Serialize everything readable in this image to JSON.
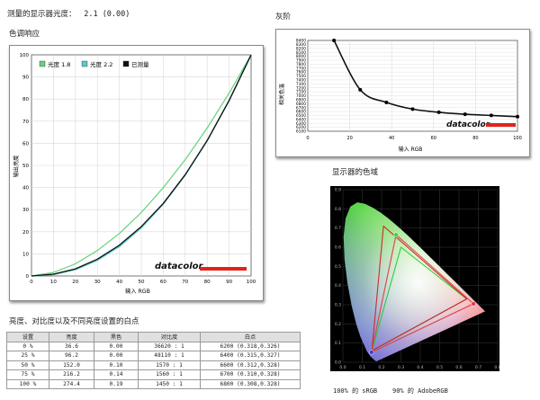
{
  "header": {
    "brightness_label": "测量的显示器光度：",
    "brightness_value": "2.1 (0.00)",
    "tone_title": "色调响应",
    "gray_title": "灰阶",
    "gamut_title": "显示器的色域",
    "table_title": "亮度、对比度以及不同亮度设置的白点"
  },
  "tone_chart": {
    "legend": [
      "光度 1.8",
      "光度 2.2",
      "已测量"
    ],
    "xlabel": "输入 RGB",
    "ylabel": "输出亮度",
    "x_ticks": [
      "0",
      "10",
      "20",
      "30",
      "40",
      "50",
      "60",
      "70",
      "80",
      "90",
      "100"
    ],
    "y_ticks": [
      "0",
      "10",
      "20",
      "30",
      "40",
      "50",
      "60",
      "70",
      "80",
      "90",
      "100"
    ],
    "logo": "datacolor"
  },
  "gray_chart": {
    "xlabel": "输入 RGB",
    "ylabel": "相关色温",
    "x_ticks": [
      "0",
      "20",
      "40",
      "60",
      "80",
      "100"
    ],
    "y_ticks": [
      "6100",
      "6200",
      "6300",
      "6400",
      "6500",
      "6600",
      "6700",
      "6800",
      "6900",
      "7000",
      "7100",
      "7200",
      "7300",
      "7400",
      "7500",
      "7600",
      "7700",
      "7800",
      "7900",
      "8000",
      "8100",
      "8200",
      "8300",
      "8400"
    ],
    "logo": "datacolor"
  },
  "gamut_chart": {
    "x_ticks": [
      "0.0",
      "0.1",
      "0.2",
      "0.3",
      "0.4",
      "0.5",
      "0.6",
      "0.7",
      "0.8"
    ],
    "y_ticks": [
      "0.0",
      "0.1",
      "0.2",
      "0.3",
      "0.4",
      "0.5",
      "0.6",
      "0.7",
      "0.8",
      "0.9"
    ],
    "caption_srgb": "100% 的 sRGB",
    "caption_adobe": "90% 的 AdobeRGB"
  },
  "table": {
    "headers": [
      "设置",
      "亮度",
      "黑色",
      "对比度",
      "白点"
    ],
    "rows": [
      [
        "0 %",
        "36.6",
        "0.00",
        "36620 : 1",
        "6200 (0.318,0.326)"
      ],
      [
        "25 %",
        "96.2",
        "0.00",
        "48110 : 1",
        "6400 (0.315,0.327)"
      ],
      [
        "50 %",
        "152.0",
        "0.10",
        "1570 : 1",
        "6600 (0.312,0.328)"
      ],
      [
        "75 %",
        "216.2",
        "0.14",
        "1560 : 1",
        "6700 (0.310,0.328)"
      ],
      [
        "100 %",
        "274.4",
        "0.19",
        "1450 : 1",
        "6800 (0.308,0.328)"
      ]
    ]
  },
  "chart_data": [
    {
      "type": "line",
      "title": "色调响应",
      "xlabel": "输入 RGB",
      "ylabel": "输出亮度",
      "xlim": [
        0,
        100
      ],
      "ylim": [
        0,
        100
      ],
      "x": [
        0,
        10,
        20,
        30,
        40,
        50,
        60,
        70,
        80,
        90,
        100
      ],
      "series": [
        {
          "name": "光度 1.8",
          "color": "#66d27a",
          "values": [
            0,
            1.6,
            5.5,
            11.5,
            19.2,
            28.7,
            39.9,
            52.6,
            66.9,
            82.7,
            100
          ]
        },
        {
          "name": "光度 2.2",
          "color": "#58c9c9",
          "values": [
            0,
            0.6,
            2.9,
            7.1,
            13.3,
            21.8,
            32.5,
            45.6,
            61.2,
            79.3,
            100
          ]
        },
        {
          "name": "已测量",
          "color": "#111111",
          "values": [
            0,
            0.8,
            3.2,
            7.6,
            13.9,
            22.3,
            32.8,
            45.8,
            61.2,
            79.4,
            100
          ]
        }
      ]
    },
    {
      "type": "line",
      "title": "灰阶",
      "xlabel": "输入 RGB",
      "ylabel": "相关色温",
      "xlim": [
        0,
        100
      ],
      "ylim": [
        6100,
        8400
      ],
      "x": [
        12.5,
        25,
        37.5,
        50,
        62.5,
        75,
        87.5,
        100
      ],
      "series": [
        {
          "name": "",
          "color": "#111111",
          "values": [
            8400,
            7150,
            6830,
            6660,
            6580,
            6530,
            6500,
            6470
          ]
        }
      ]
    },
    {
      "type": "scatter",
      "title": "显示器的色域",
      "xlim": [
        0,
        0.8
      ],
      "ylim": [
        0,
        0.9
      ],
      "series": [
        {
          "name": "sRGB",
          "color": "#22cc33",
          "points": [
            [
              0.64,
              0.33
            ],
            [
              0.3,
              0.6
            ],
            [
              0.15,
              0.06
            ]
          ]
        },
        {
          "name": "AdobeRGB",
          "color": "#cc2222",
          "points": [
            [
              0.64,
              0.33
            ],
            [
              0.21,
              0.71
            ],
            [
              0.15,
              0.06
            ]
          ]
        },
        {
          "name": "",
          "color": "#dd4444",
          "points": [
            [
              0.675,
              0.305
            ],
            [
              0.275,
              0.665
            ],
            [
              0.148,
              0.052
            ]
          ]
        }
      ]
    }
  ]
}
